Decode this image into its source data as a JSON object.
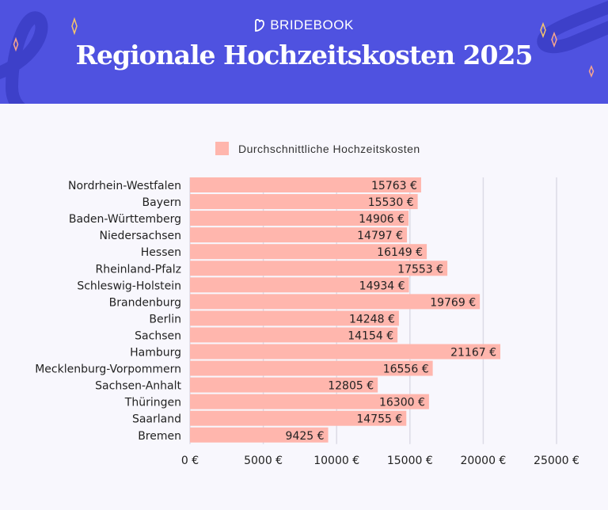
{
  "header": {
    "brand": "BRIDEBOOK",
    "title": "Regionale Hochzeitskosten 2025",
    "background_color": "#4f52e0"
  },
  "chart_data": {
    "type": "bar",
    "orientation": "horizontal",
    "title": "Regionale Hochzeitskosten 2025",
    "legend": {
      "entries": [
        "Durchschnittliche Hochzeitskosten"
      ],
      "placement": "top"
    },
    "categories": [
      "Nordrhein-Westfalen",
      "Bayern",
      "Baden-Württemberg",
      "Niedersachsen",
      "Hessen",
      "Rheinland-Pfalz",
      "Schleswig-Holstein",
      "Brandenburg",
      "Berlin",
      "Sachsen",
      "Hamburg",
      "Mecklenburg-Vorpommern",
      "Sachsen-Anhalt",
      "Thüringen",
      "Saarland",
      "Bremen"
    ],
    "series": [
      {
        "name": "Durchschnittliche Hochzeitskosten",
        "color": "#ffb6ad",
        "values": [
          15763,
          15530,
          14906,
          14797,
          16149,
          17553,
          14934,
          19769,
          14248,
          14154,
          21167,
          16556,
          12805,
          16300,
          14755,
          9425
        ]
      }
    ],
    "data_labels": [
      "15763 €",
      "15530 €",
      "14906 €",
      "14797 €",
      "16149 €",
      "17553 €",
      "14934 €",
      "19769 €",
      "14248 €",
      "14154 €",
      "21167 €",
      "16556 €",
      "12805 €",
      "16300 €",
      "14755 €",
      "9425 €"
    ],
    "x_ticks": [
      0,
      5000,
      10000,
      15000,
      20000,
      25000
    ],
    "x_tick_labels": [
      "0 €",
      "5000 €",
      "10000 €",
      "15000 €",
      "20000 €",
      "25000 €"
    ],
    "xlim": [
      0,
      25000
    ],
    "grid": true,
    "xlabel": "",
    "ylabel": ""
  }
}
